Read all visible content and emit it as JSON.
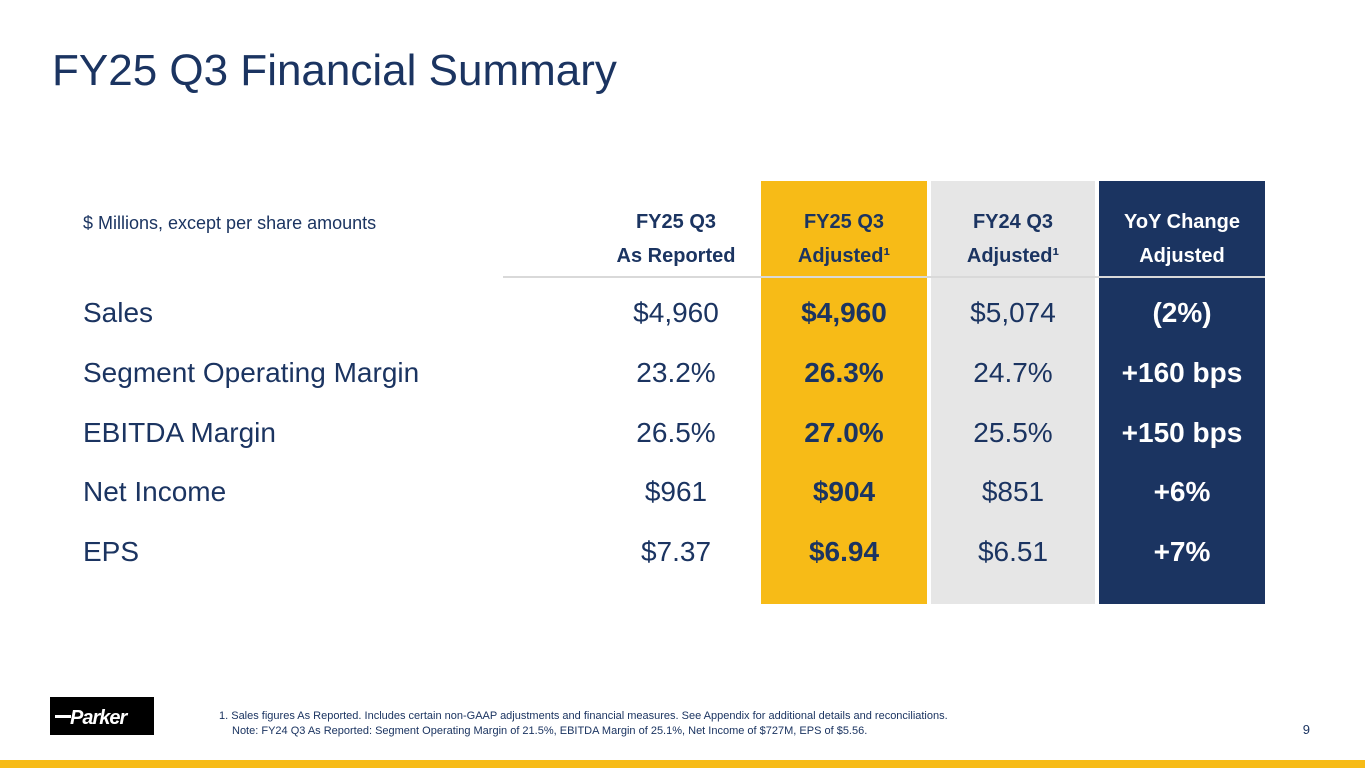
{
  "slide": {
    "title": "FY25 Q3 Financial Summary",
    "page_number": "9"
  },
  "table": {
    "units_note": "$ Millions, except per share amounts",
    "columns": [
      {
        "line1": "FY25 Q3",
        "line2": "As Reported"
      },
      {
        "line1": "FY25 Q3",
        "line2": "Adjusted¹"
      },
      {
        "line1": "FY24 Q3",
        "line2": "Adjusted¹"
      },
      {
        "line1": "YoY Change",
        "line2": "Adjusted"
      }
    ],
    "rows": [
      {
        "label": "Sales",
        "reported": "$4,960",
        "adjusted": "$4,960",
        "prior_adjusted": "$5,074",
        "yoy": "(2%)"
      },
      {
        "label": "Segment Operating Margin",
        "reported": "23.2%",
        "adjusted": "26.3%",
        "prior_adjusted": "24.7%",
        "yoy": "+160 bps"
      },
      {
        "label": "EBITDA Margin",
        "reported": "26.5%",
        "adjusted": "27.0%",
        "prior_adjusted": "25.5%",
        "yoy": "+150 bps"
      },
      {
        "label": "Net Income",
        "reported": "$961",
        "adjusted": "$904",
        "prior_adjusted": "$851",
        "yoy": "+6%"
      },
      {
        "label": "EPS",
        "reported": "$7.37",
        "adjusted": "$6.94",
        "prior_adjusted": "$6.51",
        "yoy": "+7%"
      }
    ]
  },
  "footnotes": {
    "line1": "1. Sales figures As Reported. Includes certain non-GAAP adjustments and financial measures. See Appendix for additional details and reconciliations.",
    "line2": "Note: FY24 Q3 As Reported: Segment Operating Margin of 21.5%, EBITDA Margin of 25.1%, Net Income of $727M, EPS of $5.56."
  },
  "logo": {
    "text": "Parker"
  },
  "colors": {
    "navy": "#1b3461",
    "gold": "#f7bb17",
    "light_gray": "#e6e6e6"
  }
}
